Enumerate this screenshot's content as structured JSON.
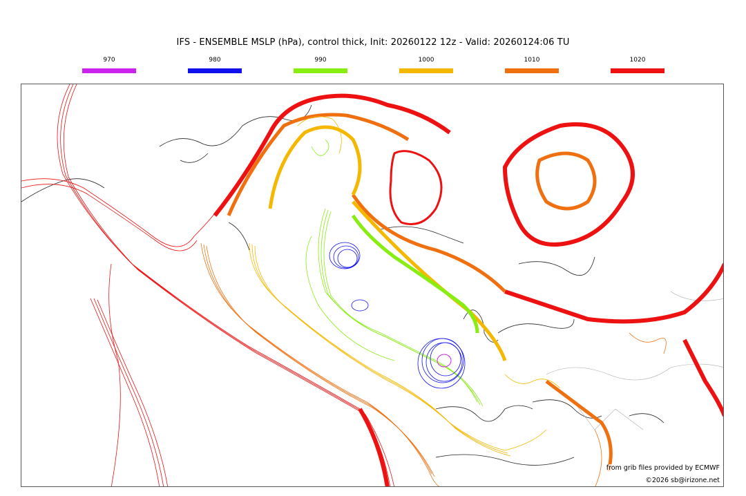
{
  "title": "IFS - ENSEMBLE MSLP (hPa), control thick, Init: 20260122 12z - Valid: 20260124:06 TU",
  "legend": [
    {
      "label": "970",
      "color": "#cc22ee"
    },
    {
      "label": "980",
      "color": "#1111ee"
    },
    {
      "label": "990",
      "color": "#88ee11"
    },
    {
      "label": "1000",
      "color": "#f5b800"
    },
    {
      "label": "1010",
      "color": "#f07010"
    },
    {
      "label": "1020",
      "color": "#ee1111"
    }
  ],
  "credits": {
    "source": "from grib files provided by ECMWF",
    "copyright": "©2026 sb@irizone.net"
  }
}
